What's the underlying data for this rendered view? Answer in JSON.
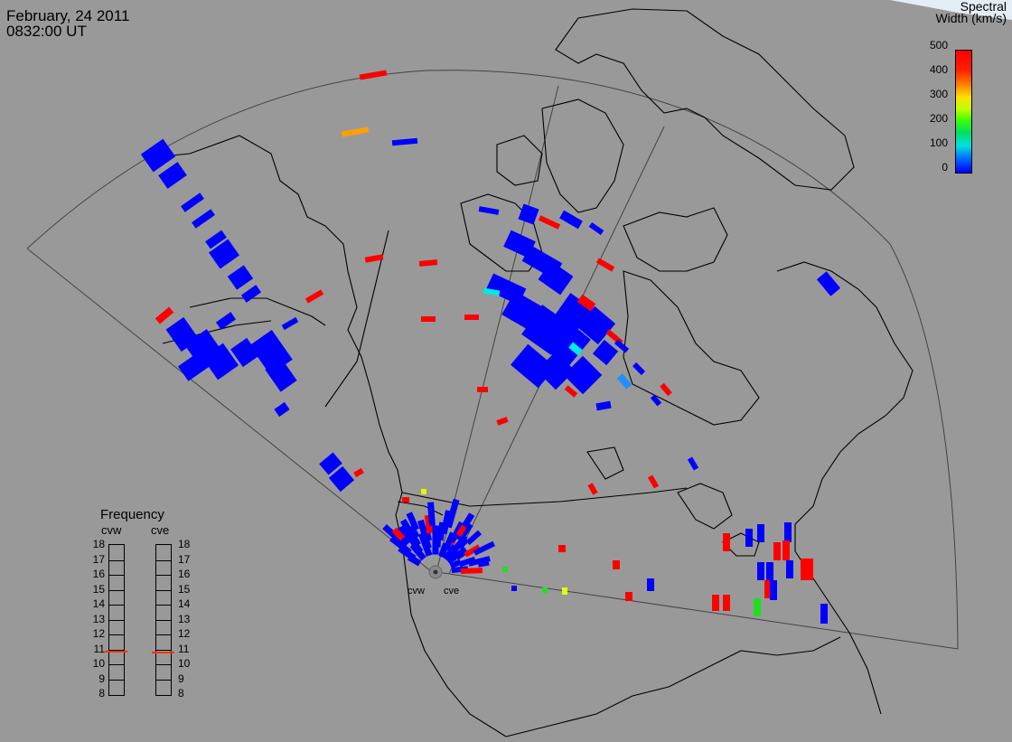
{
  "header": {
    "date": "February, 24 2011",
    "time": "0832:00 UT"
  },
  "colorbar": {
    "title_line1": "Spectral",
    "title_line2": "Width (km/s)",
    "ticks": [
      "500",
      "400",
      "300",
      "200",
      "100",
      "0"
    ]
  },
  "frequency": {
    "title": "Frequency",
    "left_label": "cvw",
    "right_label": "cve",
    "ticks": [
      "18",
      "17",
      "16",
      "15",
      "14",
      "13",
      "12",
      "11",
      "10",
      "9",
      "8"
    ],
    "cvw_value": 10.8,
    "cve_value": 10.7
  },
  "radars": {
    "left": "cvw",
    "right": "cve"
  },
  "colors": {
    "background": "#999999",
    "low": "#0000ff",
    "high": "#ff0000"
  }
}
